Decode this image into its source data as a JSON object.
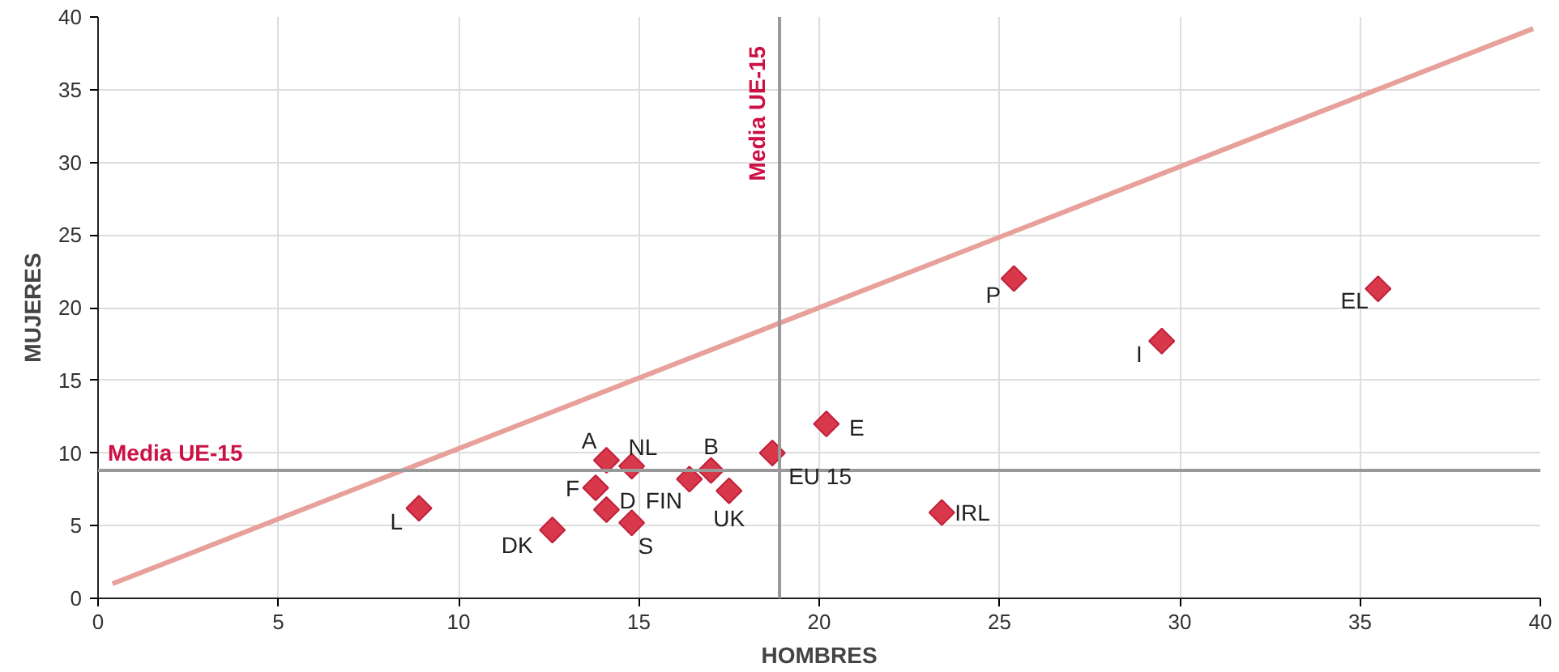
{
  "chart_data": {
    "type": "scatter",
    "xlabel": "HOMBRES",
    "ylabel": "MUJERES",
    "x": [
      8.9,
      12.6,
      14.1,
      14.8,
      13.8,
      14.1,
      14.8,
      16.4,
      17.0,
      17.5,
      18.7,
      20.2,
      23.4,
      25.4,
      29.5,
      35.5
    ],
    "series": [
      {
        "color": "#d9374a",
        "values": [
          6.2,
          4.7,
          9.5,
          9.1,
          7.6,
          6.1,
          5.2,
          8.2,
          8.8,
          7.4,
          10.0,
          12.0,
          5.9,
          22.0,
          17.7,
          21.3
        ]
      },
      {
        "type": "line",
        "marker": "none",
        "color": "#e8a09a",
        "x": [
          0.4,
          39.8
        ],
        "values": [
          1.0,
          39.2
        ]
      }
    ],
    "annotations": [
      {
        "text": "L",
        "x": 8.9,
        "y": 6.2
      },
      {
        "text": "DK",
        "x": 12.6,
        "y": 4.7
      },
      {
        "text": "A",
        "x": 14.1,
        "y": 9.5
      },
      {
        "text": "NL",
        "x": 14.8,
        "y": 9.1
      },
      {
        "text": "F",
        "x": 13.8,
        "y": 7.6
      },
      {
        "text": "D",
        "x": 14.1,
        "y": 6.1
      },
      {
        "text": "S",
        "x": 14.8,
        "y": 5.2
      },
      {
        "text": "FIN",
        "x": 16.4,
        "y": 8.2
      },
      {
        "text": "B",
        "x": 17.0,
        "y": 8.8
      },
      {
        "text": "UK",
        "x": 17.5,
        "y": 7.4
      },
      {
        "text": "EU 15",
        "x": 18.7,
        "y": 10.0
      },
      {
        "text": "E",
        "x": 20.2,
        "y": 12.0
      },
      {
        "text": "IRL",
        "x": 23.4,
        "y": 5.9
      },
      {
        "text": "P",
        "x": 25.4,
        "y": 22.0
      },
      {
        "text": "I",
        "x": 29.5,
        "y": 17.7
      },
      {
        "text": "EL",
        "x": 35.5,
        "y": 21.3
      }
    ],
    "ref_lines": [
      {
        "axis": "x",
        "value": 18.9,
        "label": "Media UE-15",
        "color": "#999999"
      },
      {
        "axis": "y",
        "value": 8.8,
        "label": "Media UE-15",
        "color": "#999999"
      }
    ],
    "xlim": [
      0,
      40
    ],
    "ylim": [
      0,
      40
    ],
    "xticks": [
      0,
      5,
      10,
      15,
      20,
      25,
      30,
      35,
      40
    ],
    "yticks": [
      0,
      5,
      10,
      15,
      20,
      25,
      30,
      35,
      40
    ],
    "grid": true,
    "marker": "diamond",
    "line_style": "solid"
  }
}
